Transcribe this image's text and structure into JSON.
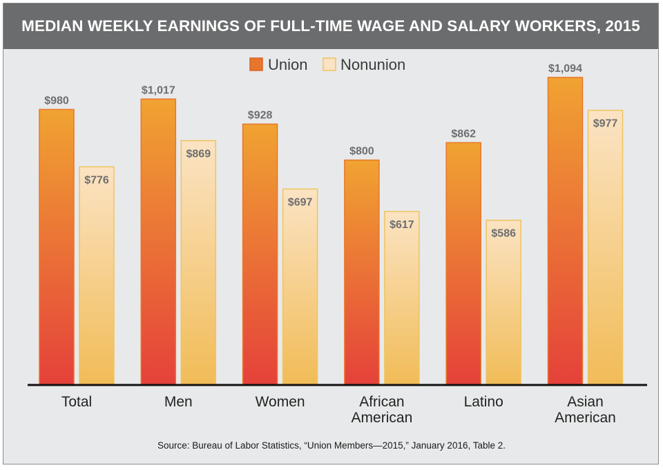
{
  "header": {
    "title": "MEDIAN WEEKLY EARNINGS OF FULL-TIME WAGE AND SALARY WORKERS, 2015"
  },
  "footer": {
    "source": "Source: Bureau of Labor Statistics, “Union Members—2015,” January 2016, Table 2."
  },
  "colors": {
    "title_background": "#6b6c6e",
    "plot_background": "#e8e9ea",
    "union_top": "#f0a332",
    "union_bottom": "#e5413a",
    "union_border": "#e8762a",
    "nonunion_top": "#fbe3c3",
    "nonunion_bottom": "#f1bc57",
    "nonunion_border": "#f0c45e",
    "value_label": "#6d6e70",
    "axis": "#111111"
  },
  "chart_data": {
    "type": "bar",
    "categories": [
      [
        "Total"
      ],
      [
        "Men"
      ],
      [
        "Women"
      ],
      [
        "African",
        "American"
      ],
      [
        "Latino"
      ],
      [
        "Asian",
        "American"
      ]
    ],
    "series": [
      {
        "name": "Union",
        "values": [
          980,
          1017,
          928,
          800,
          862,
          1094
        ],
        "labels": [
          "$980",
          "$1,017",
          "$928",
          "$800",
          "$862",
          "$1,094"
        ]
      },
      {
        "name": "Nonunion",
        "values": [
          776,
          869,
          697,
          617,
          586,
          977
        ],
        "labels": [
          "$776",
          "$869",
          "$697",
          "$617",
          "$586",
          "$977"
        ]
      }
    ],
    "ylim": [
      0,
      1094
    ],
    "legend_position": "top-center",
    "grid": false
  }
}
